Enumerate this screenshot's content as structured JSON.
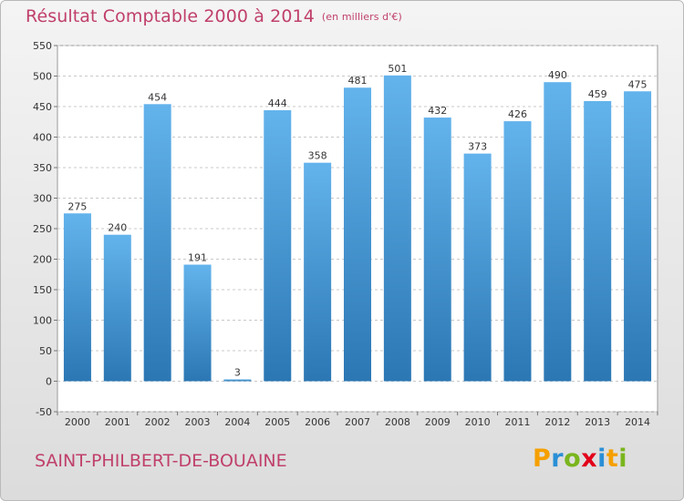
{
  "page": {
    "title": "Résultat Comptable 2000 à 2014",
    "title_unit": "(en milliers d'€)",
    "commune": "SAINT-PHILBERT-DE-BOUAINE",
    "logo": {
      "letters": [
        "P",
        "r",
        "o",
        "x",
        "i",
        "t",
        "i"
      ],
      "colors": [
        "#f5a000",
        "#2a8fd6",
        "#7ab51d",
        "#e2001a",
        "#2a8fd6",
        "#f5a000",
        "#7ab51d"
      ]
    }
  },
  "chart_data": {
    "type": "bar",
    "title": "Résultat Comptable 2000 à 2014",
    "categories": [
      "2000",
      "2001",
      "2002",
      "2003",
      "2004",
      "2005",
      "2006",
      "2007",
      "2008",
      "2009",
      "2010",
      "2011",
      "2012",
      "2013",
      "2014"
    ],
    "values": [
      275,
      240,
      454,
      191,
      3,
      444,
      358,
      481,
      501,
      432,
      373,
      426,
      490,
      459,
      475
    ],
    "value_labels": [
      "275",
      "240",
      "454",
      "191",
      "3",
      "444",
      "358",
      "481",
      "501",
      "432",
      "373",
      "426",
      "490",
      "459",
      "475"
    ],
    "ylim": [
      -50,
      550
    ],
    "yticks": [
      -50,
      0,
      50,
      100,
      150,
      200,
      250,
      300,
      350,
      400,
      450,
      500,
      550
    ],
    "ytick_labels": [
      "-50",
      "0",
      "50",
      "100",
      "150",
      "200",
      "250",
      "300",
      "350",
      "400",
      "450",
      "500",
      "550"
    ],
    "grid": true,
    "bar_color_top": "#63b3ec",
    "bar_color_bottom": "#2b77b4"
  }
}
